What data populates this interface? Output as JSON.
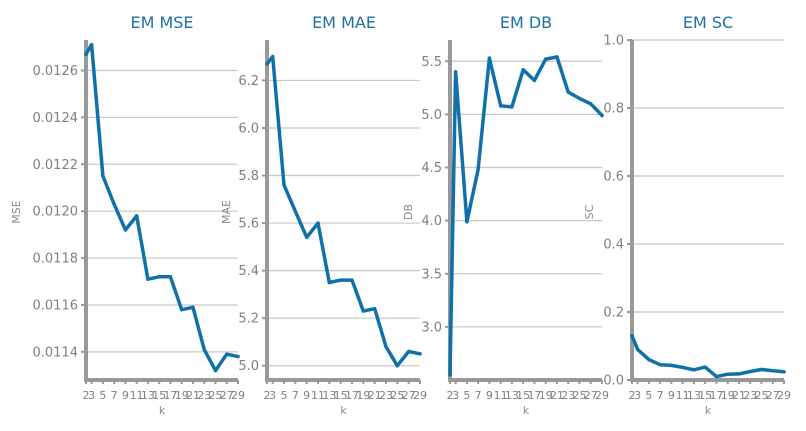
{
  "theme": {
    "line_color": "#1170aa",
    "title_color": "#1f6fa8",
    "axis_color": "#999999",
    "grid_color": "#c8c8c8"
  },
  "chart_data": [
    {
      "type": "line",
      "title": "EM MSE",
      "xlabel": "k",
      "ylabel": "MSE",
      "x": [
        2,
        3,
        5,
        7,
        9,
        11,
        13,
        15,
        17,
        19,
        21,
        23,
        25,
        27,
        29
      ],
      "values": [
        0.01267,
        0.01271,
        0.01215,
        0.01203,
        0.01192,
        0.01198,
        0.01171,
        0.01172,
        0.01172,
        0.01158,
        0.01159,
        0.01141,
        0.01132,
        0.01139,
        0.01138
      ],
      "xlim": [
        2,
        29
      ],
      "ylim": [
        0.01128,
        0.01273
      ],
      "yticks": [
        0.0114,
        0.0116,
        0.0118,
        0.012,
        0.0122,
        0.0124,
        0.0126
      ],
      "ytick_labels": [
        "0.0114",
        "0.0116",
        "0.0118",
        "0.0120",
        "0.0122",
        "0.0124",
        "0.0126"
      ],
      "xtick_labels": [
        "2",
        "3",
        "5",
        "7",
        "9",
        "11",
        "13",
        "15",
        "17",
        "19",
        "21",
        "23",
        "25",
        "27",
        "29"
      ],
      "grid": true
    },
    {
      "type": "line",
      "title": "EM MAE",
      "xlabel": "k",
      "ylabel": "MAE",
      "x": [
        2,
        3,
        5,
        7,
        9,
        11,
        13,
        15,
        17,
        19,
        21,
        23,
        25,
        27,
        29
      ],
      "values": [
        6.27,
        6.3,
        5.76,
        5.65,
        5.54,
        5.6,
        5.35,
        5.36,
        5.36,
        5.23,
        5.24,
        5.08,
        5.0,
        5.06,
        5.05
      ],
      "xlim": [
        2,
        29
      ],
      "ylim": [
        4.94,
        6.37
      ],
      "yticks": [
        5.0,
        5.2,
        5.4,
        5.6,
        5.8,
        6.0,
        6.2
      ],
      "ytick_labels": [
        "5.0",
        "5.2",
        "5.4",
        "5.6",
        "5.8",
        "6.0",
        "6.2"
      ],
      "xtick_labels": [
        "2",
        "3",
        "5",
        "7",
        "9",
        "11",
        "13",
        "15",
        "17",
        "19",
        "21",
        "23",
        "25",
        "27",
        "29"
      ],
      "grid": true
    },
    {
      "type": "line",
      "title": "EM DB",
      "xlabel": "k",
      "ylabel": "DB",
      "x": [
        2,
        3,
        5,
        7,
        9,
        11,
        13,
        15,
        17,
        19,
        21,
        23,
        25,
        27,
        29
      ],
      "values": [
        2.55,
        5.4,
        3.99,
        4.48,
        5.53,
        5.08,
        5.07,
        5.42,
        5.32,
        5.52,
        5.54,
        5.21,
        5.15,
        5.1,
        4.99
      ],
      "xlim": [
        2,
        29
      ],
      "ylim": [
        2.5,
        5.7
      ],
      "yticks": [
        3.0,
        3.5,
        4.0,
        4.5,
        5.0,
        5.5
      ],
      "ytick_labels": [
        "3.0",
        "3.5",
        "4.0",
        "4.5",
        "5.0",
        "5.5"
      ],
      "xtick_labels": [
        "2",
        "3",
        "5",
        "7",
        "9",
        "11",
        "13",
        "15",
        "17",
        "19",
        "21",
        "23",
        "25",
        "27",
        "29"
      ],
      "grid": true
    },
    {
      "type": "line",
      "title": "EM SC",
      "xlabel": "k",
      "ylabel": "SC",
      "x": [
        2,
        3,
        5,
        7,
        9,
        11,
        13,
        15,
        17,
        19,
        21,
        23,
        25,
        27,
        29
      ],
      "values": [
        0.13,
        0.09,
        0.06,
        0.045,
        0.043,
        0.037,
        0.03,
        0.038,
        0.01,
        0.017,
        0.018,
        0.025,
        0.031,
        0.027,
        0.024
      ],
      "xlim": [
        2,
        29
      ],
      "ylim": [
        0.0,
        1.0
      ],
      "yticks": [
        0.0,
        0.2,
        0.4,
        0.6,
        0.8,
        1.0
      ],
      "ytick_labels": [
        "0.0",
        "0.2",
        "0.4",
        "0.6",
        "0.8",
        "1.0"
      ],
      "xtick_labels": [
        "2",
        "3",
        "5",
        "7",
        "9",
        "11",
        "13",
        "15",
        "17",
        "19",
        "21",
        "23",
        "25",
        "27",
        "29"
      ],
      "grid": true
    }
  ]
}
